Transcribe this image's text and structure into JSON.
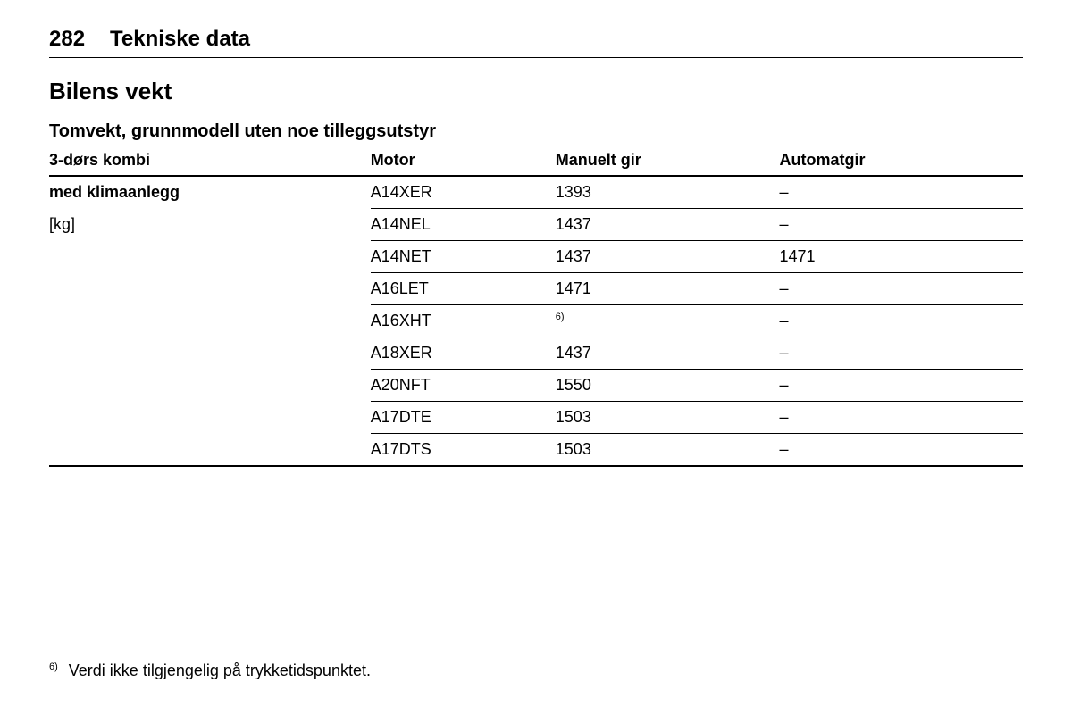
{
  "header": {
    "page_number": "282",
    "section": "Tekniske data"
  },
  "main_heading": "Bilens vekt",
  "sub_heading": "Tomvekt, grunnmodell uten noe tilleggsutstyr",
  "table": {
    "columns": {
      "description": "3-dørs kombi",
      "motor": "Motor",
      "manual": "Manuelt gir",
      "auto": "Automatgir"
    },
    "row_label": "med klimaanlegg",
    "row_sublabel": "[kg]",
    "rows": [
      {
        "motor": "A14XER",
        "manual": "1393",
        "auto": "–"
      },
      {
        "motor": "A14NEL",
        "manual": "1437",
        "auto": "–"
      },
      {
        "motor": "A14NET",
        "manual": "1437",
        "auto": "1471"
      },
      {
        "motor": "A16LET",
        "manual": "1471",
        "auto": "–"
      },
      {
        "motor": "A16XHT",
        "manual": "",
        "manual_footnote": "6)",
        "auto": "–"
      },
      {
        "motor": "A18XER",
        "manual": "1437",
        "auto": "–"
      },
      {
        "motor": "A20NFT",
        "manual": "1550",
        "auto": "–"
      },
      {
        "motor": "A17DTE",
        "manual": "1503",
        "auto": "–"
      },
      {
        "motor": "A17DTS",
        "manual": "1503",
        "auto": "–"
      }
    ]
  },
  "footnote": {
    "number": "6)",
    "text": "Verdi ikke tilgjengelig på trykketidspunktet."
  },
  "colors": {
    "text": "#000000",
    "background": "#ffffff",
    "rule": "#000000"
  }
}
